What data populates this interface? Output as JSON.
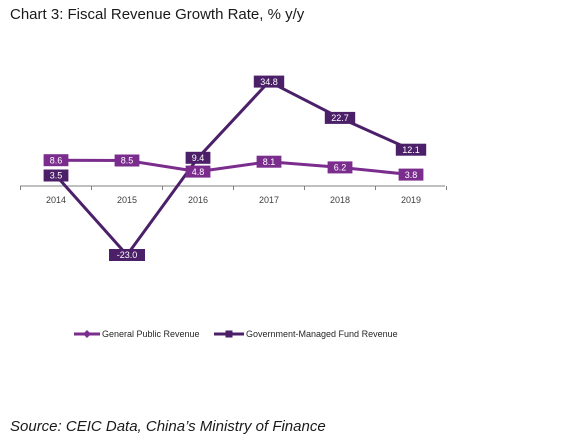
{
  "title": "Chart 3: Fiscal Revenue Growth Rate, % y/y",
  "source": "Source: CEIC Data, China’s Ministry of Finance",
  "colors": {
    "general": "#7B2D8E",
    "fund": "#4B2069",
    "axis": "#808080"
  },
  "chart_data": {
    "type": "line",
    "title": "Chart 3: Fiscal Revenue Growth Rate, % y/y",
    "xlabel": "",
    "ylabel": "",
    "categories": [
      "2014",
      "2015",
      "2016",
      "2017",
      "2018",
      "2019"
    ],
    "ylim": [
      -25,
      40
    ],
    "grid": false,
    "legend_position": "bottom",
    "series": [
      {
        "name": "General Public Revenue",
        "values": [
          8.6,
          8.5,
          4.8,
          8.1,
          6.2,
          3.8
        ],
        "labels": [
          "8.6",
          "8.5",
          "4.8",
          "8.1",
          "6.2",
          "3.8"
        ],
        "marker": "diamond"
      },
      {
        "name": "Government-Managed Fund Revenue",
        "values": [
          3.5,
          -23.0,
          9.4,
          34.8,
          22.7,
          12.1
        ],
        "labels": [
          "3.5",
          "-23.0",
          "9.4",
          "34.8",
          "22.7",
          "12.1"
        ],
        "marker": "square"
      }
    ]
  }
}
